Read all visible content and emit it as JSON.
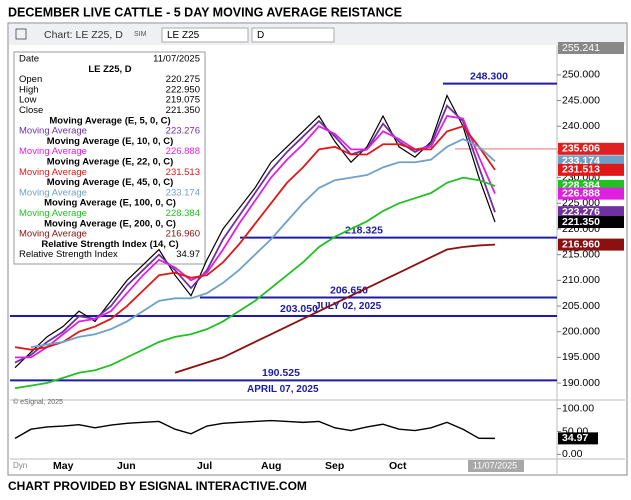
{
  "title": "DECEMBER LIVE CATTLE -  5 DAY MOVING AVERAGE REISTANCE",
  "footer": "CHART PROVIDED BY ESIGNAL INTERACTIVE.COM",
  "toolbar": {
    "chart": "Chart: LE Z25, D",
    "sim": "SIM",
    "symbol": "LE Z25",
    "interval": "D"
  },
  "copyright": "© eSignal, 2025",
  "dyn": "Dyn",
  "info_panel": {
    "date_label": "Date",
    "close_label": "Close",
    "ohlc": [
      {
        "label": "Open",
        "value": "220.275"
      },
      {
        "label": "High",
        "value": "222.950"
      },
      {
        "label": "Low",
        "value": "219.075"
      }
    ]
  },
  "chart_data": [
    {
      "type": "line",
      "categories": [
        null,
        null,
        null,
        "May",
        null,
        null,
        null,
        "Jun",
        null,
        null,
        null,
        null,
        "Jul",
        null,
        null,
        null,
        "Aug",
        null,
        null,
        null,
        "Sep",
        null,
        null,
        null,
        "Oct",
        null,
        null,
        null,
        null,
        null,
        "11/07/2025"
      ],
      "ylim": [
        186.7,
        255.241
      ],
      "yticks": [
        {
          "value": 190,
          "label": "190.000"
        },
        {
          "value": 195,
          "label": "195.000"
        },
        {
          "value": 200,
          "label": "200.000"
        },
        {
          "value": 205,
          "label": "205.000"
        },
        {
          "value": 210,
          "label": "210.000"
        },
        {
          "value": 215,
          "label": "215.000"
        },
        {
          "value": 220,
          "label": "220.000"
        },
        {
          "value": 225,
          "label": "225.000"
        },
        {
          "value": 230,
          "label": "230.000"
        },
        {
          "value": 235,
          "label": "235.000"
        },
        {
          "value": 240,
          "label": "240.000"
        },
        {
          "value": 245,
          "label": "245.000"
        },
        {
          "value": 250,
          "label": "250.000"
        }
      ],
      "grid": false,
      "series": [
        {
          "name": "LE Z25, D",
          "color": "#000000",
          "values": [
            193,
            196,
            199,
            201,
            204,
            202,
            206,
            210,
            213,
            216,
            211,
            207,
            214,
            220,
            224,
            228,
            233,
            236,
            239,
            242,
            237,
            233,
            236,
            242,
            236,
            234,
            237,
            246,
            240,
            230,
            221.35
          ],
          "value_labels": [
            null,
            null,
            null,
            null,
            null,
            null,
            null,
            null,
            null,
            null,
            null,
            null,
            null,
            null,
            null,
            null,
            null,
            null,
            null,
            null,
            null,
            null,
            null,
            null,
            null,
            null,
            null,
            null,
            null,
            null,
            "221.350"
          ]
        },
        {
          "name": "Moving Average (E, 5, 0, C)",
          "short_name": "Moving Average",
          "color": "#7030a0",
          "values": [
            194,
            195.5,
            198,
            200,
            203,
            202.5,
            205,
            209,
            212,
            215,
            212,
            208.5,
            212,
            218,
            222.5,
            227,
            231.5,
            235,
            238,
            241,
            238,
            234.5,
            235.5,
            240.5,
            237,
            235,
            236.5,
            244,
            241,
            232,
            223.276
          ]
        },
        {
          "name": "Moving Average (E, 10, 0, C)",
          "short_name": "Moving Average",
          "color": "#e020e0",
          "values": [
            195,
            195,
            197,
            199.5,
            202,
            202.5,
            204,
            207.5,
            211,
            214,
            212.5,
            210,
            211.5,
            216,
            221,
            225.5,
            230,
            233.5,
            236.5,
            240,
            238.5,
            235.5,
            235.5,
            239,
            237.5,
            235.5,
            236,
            242,
            241.5,
            234,
            226.888
          ]
        },
        {
          "name": "Moving Average (E, 22, 0, C)",
          "short_name": "Moving Average",
          "color": "#e01818",
          "values": [
            197,
            196.5,
            197,
            198,
            200,
            201,
            202.5,
            205,
            208,
            211,
            211.5,
            210.5,
            211,
            213.5,
            217,
            221,
            225,
            229,
            232,
            235.5,
            236,
            234.5,
            234.5,
            236.5,
            236.5,
            235.5,
            235.5,
            239,
            240,
            236,
            231.513
          ]
        },
        {
          "name": "Moving Average (E, 45, 0, C)",
          "short_name": "Moving Average",
          "color": "#6fa0c8",
          "values": [
            null,
            197,
            197.5,
            198,
            199,
            199.5,
            200.5,
            202,
            204,
            206,
            206.5,
            206.5,
            207.5,
            209.5,
            212,
            215,
            218,
            221.5,
            225,
            228,
            229.5,
            230,
            230.5,
            232,
            233,
            233,
            233.5,
            236,
            237.5,
            236,
            233.174
          ]
        },
        {
          "name": "Moving Average (E, 100, 0, C)",
          "short_name": "Moving Average",
          "color": "#22c022",
          "values": [
            189,
            189.5,
            190,
            191,
            192,
            192.5,
            193.5,
            195,
            196.5,
            198,
            199,
            199.5,
            200.5,
            202,
            204,
            206,
            208.5,
            211,
            213.5,
            216.5,
            218.5,
            220,
            221.5,
            223.5,
            225,
            226,
            227,
            229,
            230,
            229.5,
            228.384
          ]
        },
        {
          "name": "Moving Average (E, 200, 0, C)",
          "short_name": "Moving Average",
          "color": "#8b1010",
          "values": [
            null,
            null,
            null,
            null,
            null,
            null,
            null,
            null,
            null,
            null,
            192,
            193,
            194,
            195,
            196.5,
            198,
            199.5,
            201,
            202.5,
            204,
            205.5,
            207,
            208.5,
            210,
            211.5,
            213,
            214.5,
            216,
            216.5,
            216.8,
            216.96
          ],
          "value_labels": [
            null,
            null,
            null,
            null,
            null,
            null,
            null,
            null,
            null,
            null,
            null,
            null,
            null,
            null,
            null,
            null,
            null,
            null,
            null,
            null,
            null,
            null,
            null,
            null,
            null,
            null,
            null,
            null,
            null,
            null,
            "216.960"
          ]
        }
      ],
      "levels": [
        {
          "value": 248.3,
          "label": "248.300"
        },
        {
          "value": 218.325,
          "label": "218.325"
        },
        {
          "value": 206.65,
          "label": "206.650",
          "note": "JULY 02, 2025"
        },
        {
          "value": 203.05,
          "label": "203.050"
        },
        {
          "value": 190.525,
          "label": "190.525",
          "note": "APRIL 07, 2025"
        }
      ],
      "marker": {
        "value": 235.606,
        "color": "#e02020"
      }
    },
    {
      "type": "line",
      "ylim": [
        -8,
        108
      ],
      "yticks": [
        {
          "value": 100,
          "label": "100.00"
        },
        {
          "value": 50,
          "label": "50.00"
        },
        {
          "value": 0,
          "label": "0.00"
        }
      ],
      "series": [
        {
          "name": "Relative Strength Index (14, C)",
          "short_name": "Relative Strength Index",
          "color": "#000000",
          "values": [
            35,
            55,
            60,
            62,
            65,
            58,
            64,
            68,
            70,
            72,
            55,
            45,
            62,
            68,
            70,
            72,
            74,
            72,
            70,
            72,
            58,
            52,
            60,
            66,
            55,
            52,
            58,
            70,
            55,
            35,
            34.97
          ]
        }
      ]
    }
  ]
}
